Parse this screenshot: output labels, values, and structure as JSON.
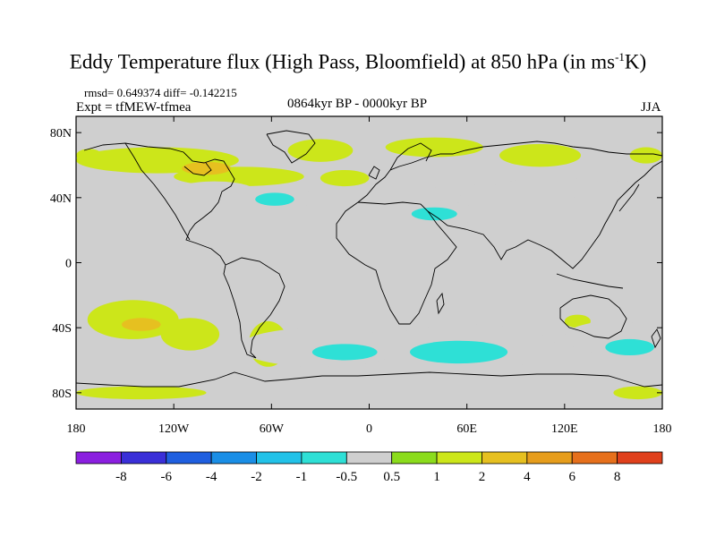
{
  "title": {
    "main": "Eddy Temperature flux (High Pass, Bloomfield) at 850 hPa (in ms",
    "sup": "-1",
    "tail": "K)"
  },
  "stats": "rmsd= 0.649374 diff= -0.142215",
  "expt": "Expt = tfMEW-tfmea",
  "period": "0864kyr BP - 0000kyr BP",
  "season": "JJA",
  "map": {
    "lon_range": [
      -180,
      180
    ],
    "lat_range": [
      -90,
      90
    ],
    "lat_ticks": [
      {
        "value": 80,
        "label": "80N"
      },
      {
        "value": 40,
        "label": "40N"
      },
      {
        "value": 0,
        "label": "0"
      },
      {
        "value": -40,
        "label": "40S"
      },
      {
        "value": -80,
        "label": "80S"
      }
    ],
    "lon_ticks": [
      {
        "value": -180,
        "label": "180"
      },
      {
        "value": -120,
        "label": "120W"
      },
      {
        "value": -60,
        "label": "60W"
      },
      {
        "value": 0,
        "label": "0"
      },
      {
        "value": 60,
        "label": "60E"
      },
      {
        "value": 120,
        "label": "120E"
      },
      {
        "value": 180,
        "label": "180"
      }
    ],
    "background_color": "#cfcfcf"
  },
  "colorbar": {
    "colors": [
      "#8b1fe0",
      "#3a2fd8",
      "#1f5fe0",
      "#1a8ee6",
      "#22c2e8",
      "#2ee0d6",
      "#cfcfcf",
      "#8bdc1c",
      "#cce61a",
      "#e6c020",
      "#e69d1c",
      "#e6701c",
      "#e0401c"
    ],
    "labels": [
      "-8",
      "-6",
      "-4",
      "-2",
      "-1",
      "-0.5",
      "0.5",
      "1",
      "2",
      "4",
      "6",
      "8"
    ]
  },
  "chart_data": {
    "type": "heatmap",
    "title": "Eddy Temperature flux (High Pass, Bloomfield) at 850 hPa (in ms-1K)",
    "xlim": [
      -180,
      180
    ],
    "ylim": [
      -90,
      90
    ],
    "levels": [
      -8,
      -6,
      -4,
      -2,
      -1,
      -0.5,
      0.5,
      1,
      2,
      4,
      6,
      8
    ],
    "anomaly_regions": [
      {
        "lon": -172,
        "lat": 66,
        "level": 1,
        "rx": 8,
        "ry": 4
      },
      {
        "lon": -130,
        "lat": 63,
        "level": 1,
        "rx": 50,
        "ry": 8
      },
      {
        "lon": -30,
        "lat": 69,
        "level": 1,
        "rx": 20,
        "ry": 7
      },
      {
        "lon": 40,
        "lat": 71,
        "level": 1,
        "rx": 30,
        "ry": 6
      },
      {
        "lon": 105,
        "lat": 66,
        "level": 1,
        "rx": 25,
        "ry": 7
      },
      {
        "lon": 170,
        "lat": 66,
        "level": 1,
        "rx": 10,
        "ry": 5
      },
      {
        "lon": -80,
        "lat": 53,
        "level": 1,
        "rx": 40,
        "ry": 6
      },
      {
        "lon": -15,
        "lat": 52,
        "level": 1,
        "rx": 15,
        "ry": 5
      },
      {
        "lon": -100,
        "lat": 58,
        "level": 2,
        "rx": 15,
        "ry": 4
      },
      {
        "lon": -145,
        "lat": -35,
        "level": 1,
        "rx": 28,
        "ry": 12
      },
      {
        "lon": -110,
        "lat": -44,
        "level": 1,
        "rx": 18,
        "ry": 10
      },
      {
        "lon": -62,
        "lat": -50,
        "level": 1,
        "rx": 12,
        "ry": 14
      },
      {
        "lon": -140,
        "lat": -38,
        "level": 2,
        "rx": 12,
        "ry": 4
      },
      {
        "lon": -140,
        "lat": -80,
        "level": 1,
        "rx": 40,
        "ry": 4
      },
      {
        "lon": 165,
        "lat": -80,
        "level": 1,
        "rx": 15,
        "ry": 4
      },
      {
        "lon": 128,
        "lat": -36,
        "level": 1,
        "rx": 8,
        "ry": 4
      },
      {
        "lon": -95,
        "lat": 44,
        "level": -0.5,
        "rx": 25,
        "ry": 6
      },
      {
        "lon": -52,
        "lat": 40,
        "level": -0.5,
        "rx": 18,
        "ry": 7
      },
      {
        "lon": 40,
        "lat": 30,
        "level": -0.5,
        "rx": 28,
        "ry": 8
      },
      {
        "lon": 55,
        "lat": 45,
        "level": -0.5,
        "rx": 15,
        "ry": 4
      },
      {
        "lon": 120,
        "lat": 46,
        "level": -0.5,
        "rx": 45,
        "ry": 6
      },
      {
        "lon": -30,
        "lat": -52,
        "level": -0.5,
        "rx": 50,
        "ry": 12
      },
      {
        "lon": 60,
        "lat": -52,
        "level": -0.5,
        "rx": 55,
        "ry": 14
      },
      {
        "lon": 150,
        "lat": -46,
        "level": -0.5,
        "rx": 30,
        "ry": 10
      },
      {
        "lon": -58,
        "lat": 39,
        "level": -1,
        "rx": 12,
        "ry": 4
      },
      {
        "lon": 40,
        "lat": 30,
        "level": -1,
        "rx": 14,
        "ry": 4
      },
      {
        "lon": 55,
        "lat": -55,
        "level": -1,
        "rx": 30,
        "ry": 7
      },
      {
        "lon": -15,
        "lat": -55,
        "level": -1,
        "rx": 20,
        "ry": 5
      },
      {
        "lon": 160,
        "lat": -52,
        "level": -1,
        "rx": 15,
        "ry": 5
      }
    ]
  }
}
